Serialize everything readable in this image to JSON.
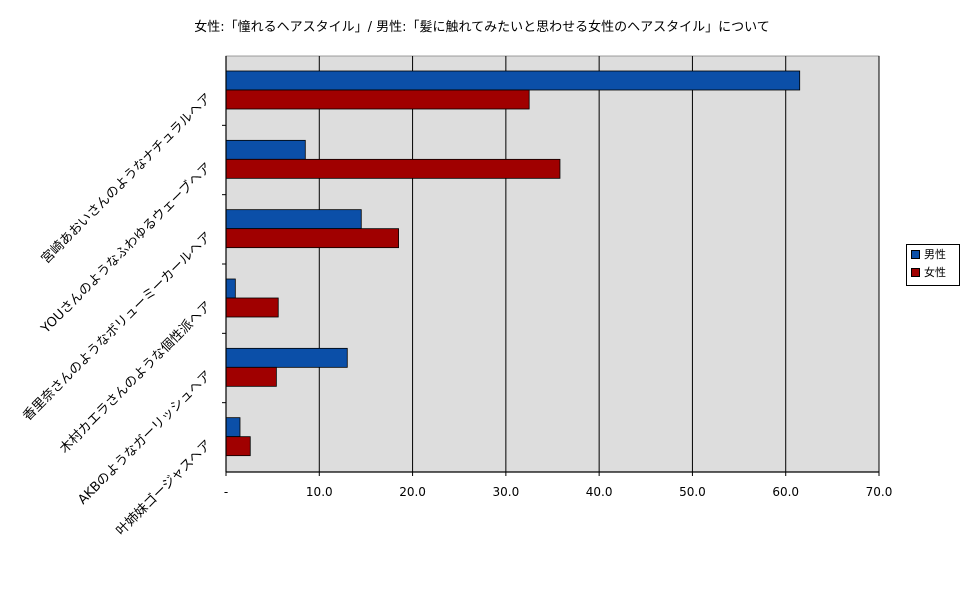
{
  "chart_data": {
    "type": "bar",
    "orientation": "horizontal",
    "title": "女性:「憧れるヘアスタイル」/ 男性:「髪に触れてみたいと思わせる女性のヘアスタイル」について",
    "categories": [
      "宮崎あおいさんのようなナチュラルヘア",
      "YOUさんのようなふわゆるウェーブヘア",
      "香里奈さんのようなボリューミーカールヘア",
      "木村カエラさんのような個性派ヘア",
      "AKBのようなガーリッシュヘア",
      "叶姉妹ゴージャスヘア"
    ],
    "series": [
      {
        "name": "男性",
        "color": "#0B4FA8",
        "values": [
          61.5,
          8.5,
          14.5,
          1.0,
          13.0,
          1.5
        ]
      },
      {
        "name": "女性",
        "color": "#A00000",
        "values": [
          32.5,
          35.8,
          18.5,
          5.6,
          5.4,
          2.6
        ]
      }
    ],
    "xlim": [
      0,
      70
    ],
    "xticks": [
      "-",
      "10.0",
      "20.0",
      "30.0",
      "40.0",
      "50.0",
      "60.0",
      "70.0"
    ],
    "grid": true,
    "plot_background": "#DDDDDD",
    "legend_position": "right"
  }
}
